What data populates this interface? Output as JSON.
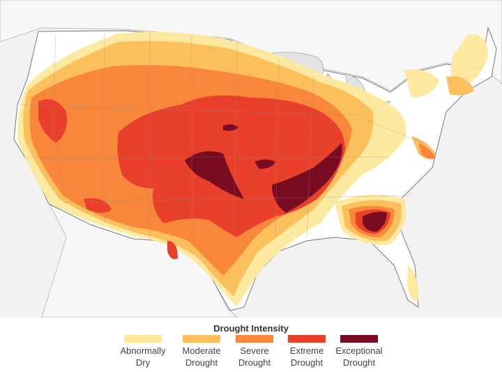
{
  "legend": {
    "title": "Drought Intensity",
    "items": [
      {
        "label": "Abnormally\nDry",
        "color": "#fde89b"
      },
      {
        "label": "Moderate\nDrought",
        "color": "#fbbf5c"
      },
      {
        "label": "Severe\nDrought",
        "color": "#f9873b"
      },
      {
        "label": "Extreme\nDrought",
        "color": "#e8402b"
      },
      {
        "label": "Exceptional\nDrought",
        "color": "#7a0c22"
      }
    ]
  },
  "map": {
    "land_color": "#ffffff",
    "outside_color": "#f2f2f2",
    "water_color": "#e3e3e3",
    "border_color": "#999999"
  }
}
